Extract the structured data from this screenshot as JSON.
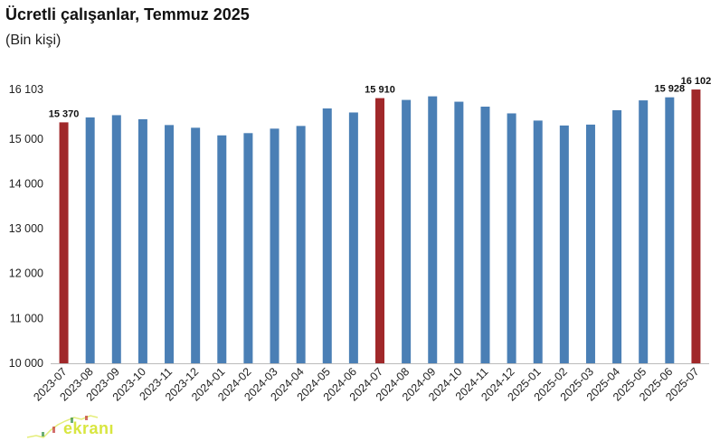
{
  "chart_data": {
    "type": "bar",
    "title": "Ücretli çalışanlar, Temmuz 2025",
    "subtitle": "(Bin kişi)",
    "xlabel": "",
    "ylabel": "",
    "ylim": [
      10000,
      16103
    ],
    "yticks": [
      {
        "value": 10000,
        "label": "10 000"
      },
      {
        "value": 11000,
        "label": "11 000"
      },
      {
        "value": 12000,
        "label": "12 000"
      },
      {
        "value": 13000,
        "label": "13 000"
      },
      {
        "value": 14000,
        "label": "14 000"
      },
      {
        "value": 15000,
        "label": "15 000"
      },
      {
        "value": 16103,
        "label": "16 103"
      }
    ],
    "grid": false,
    "categories": [
      "2023-07",
      "2023-08",
      "2023-09",
      "2023-10",
      "2023-11",
      "2023-12",
      "2024-01",
      "2024-02",
      "2024-03",
      "2024-04",
      "2024-05",
      "2024-06",
      "2024-07",
      "2024-08",
      "2024-09",
      "2024-10",
      "2024-11",
      "2024-12",
      "2025-01",
      "2025-02",
      "2025-03",
      "2025-04",
      "2025-05",
      "2025-06",
      "2025-07"
    ],
    "values": [
      15370,
      15480,
      15530,
      15440,
      15310,
      15250,
      15080,
      15130,
      15230,
      15290,
      15680,
      15590,
      15910,
      15870,
      15950,
      15830,
      15720,
      15570,
      15410,
      15300,
      15320,
      15640,
      15860,
      15928,
      16102
    ],
    "highlight": [
      0,
      12,
      24
    ],
    "colors": {
      "default": "#4a7fb5",
      "highlight": "#a0282a"
    },
    "data_labels": [
      {
        "index": 0,
        "text": "15 370"
      },
      {
        "index": 12,
        "text": "15 910"
      },
      {
        "index": 23,
        "text": "15 928"
      },
      {
        "index": 24,
        "text": "16 102"
      }
    ]
  },
  "watermark": {
    "text": "ekranı"
  }
}
